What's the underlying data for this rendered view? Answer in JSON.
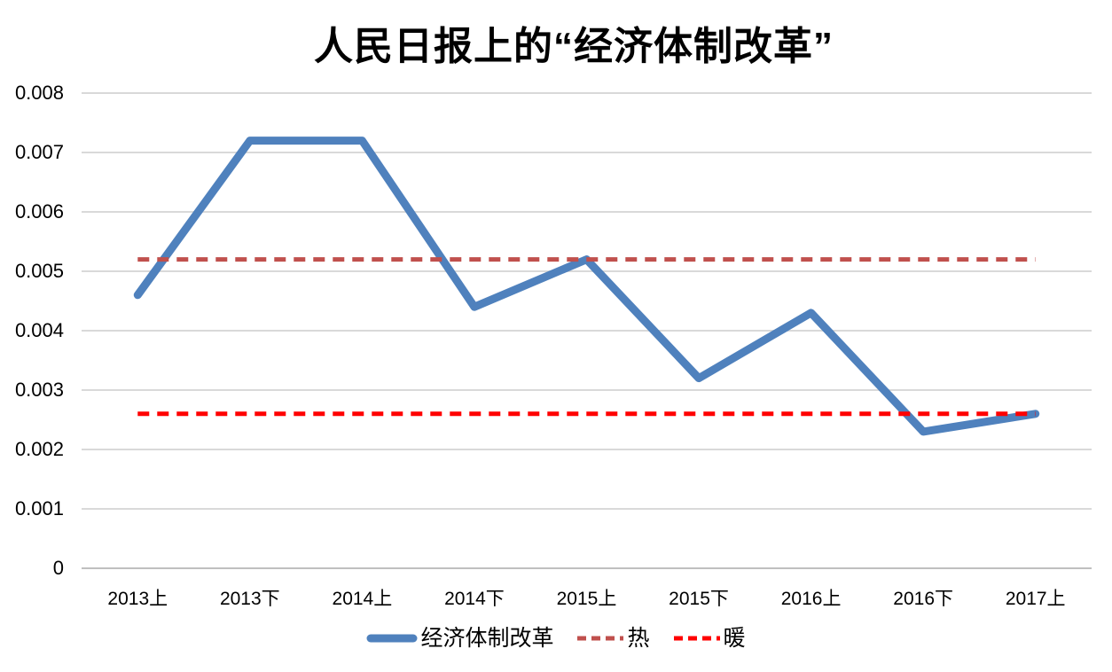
{
  "chart_data": {
    "type": "line",
    "title": "人民日报上的“经济体制改革”",
    "categories": [
      "2013上",
      "2013下",
      "2014上",
      "2014下",
      "2015上",
      "2015下",
      "2016上",
      "2016下",
      "2017上"
    ],
    "series": [
      {
        "name": "经济体制改革",
        "color": "#4F81BD",
        "line_style": "solid",
        "values": [
          0.0046,
          0.0072,
          0.0072,
          0.0044,
          0.0052,
          0.0032,
          0.0043,
          0.0023,
          0.0026
        ]
      },
      {
        "name": "热",
        "color": "#C0504D",
        "line_style": "dashed",
        "values": [
          0.0052,
          0.0052,
          0.0052,
          0.0052,
          0.0052,
          0.0052,
          0.0052,
          0.0052,
          0.0052
        ]
      },
      {
        "name": "暖",
        "color": "#FF0000",
        "line_style": "dashed",
        "values": [
          0.0026,
          0.0026,
          0.0026,
          0.0026,
          0.0026,
          0.0026,
          0.0026,
          0.0026,
          0.0026
        ]
      }
    ],
    "xlabel": "",
    "ylabel": "",
    "ylim": [
      0,
      0.008
    ],
    "yticks": [
      0,
      0.001,
      0.002,
      0.003,
      0.004,
      0.005,
      0.006,
      0.007,
      0.008
    ],
    "ytick_labels": [
      "0",
      "0.001",
      "0.002",
      "0.003",
      "0.004",
      "0.005",
      "0.006",
      "0.007",
      "0.008"
    ],
    "grid": "horizontal",
    "legend_position": "bottom",
    "colors": {
      "gridline": "#D9D9D9",
      "axis_line": "#BFBFBF",
      "text": "#000000",
      "background": "#FFFFFF"
    }
  }
}
